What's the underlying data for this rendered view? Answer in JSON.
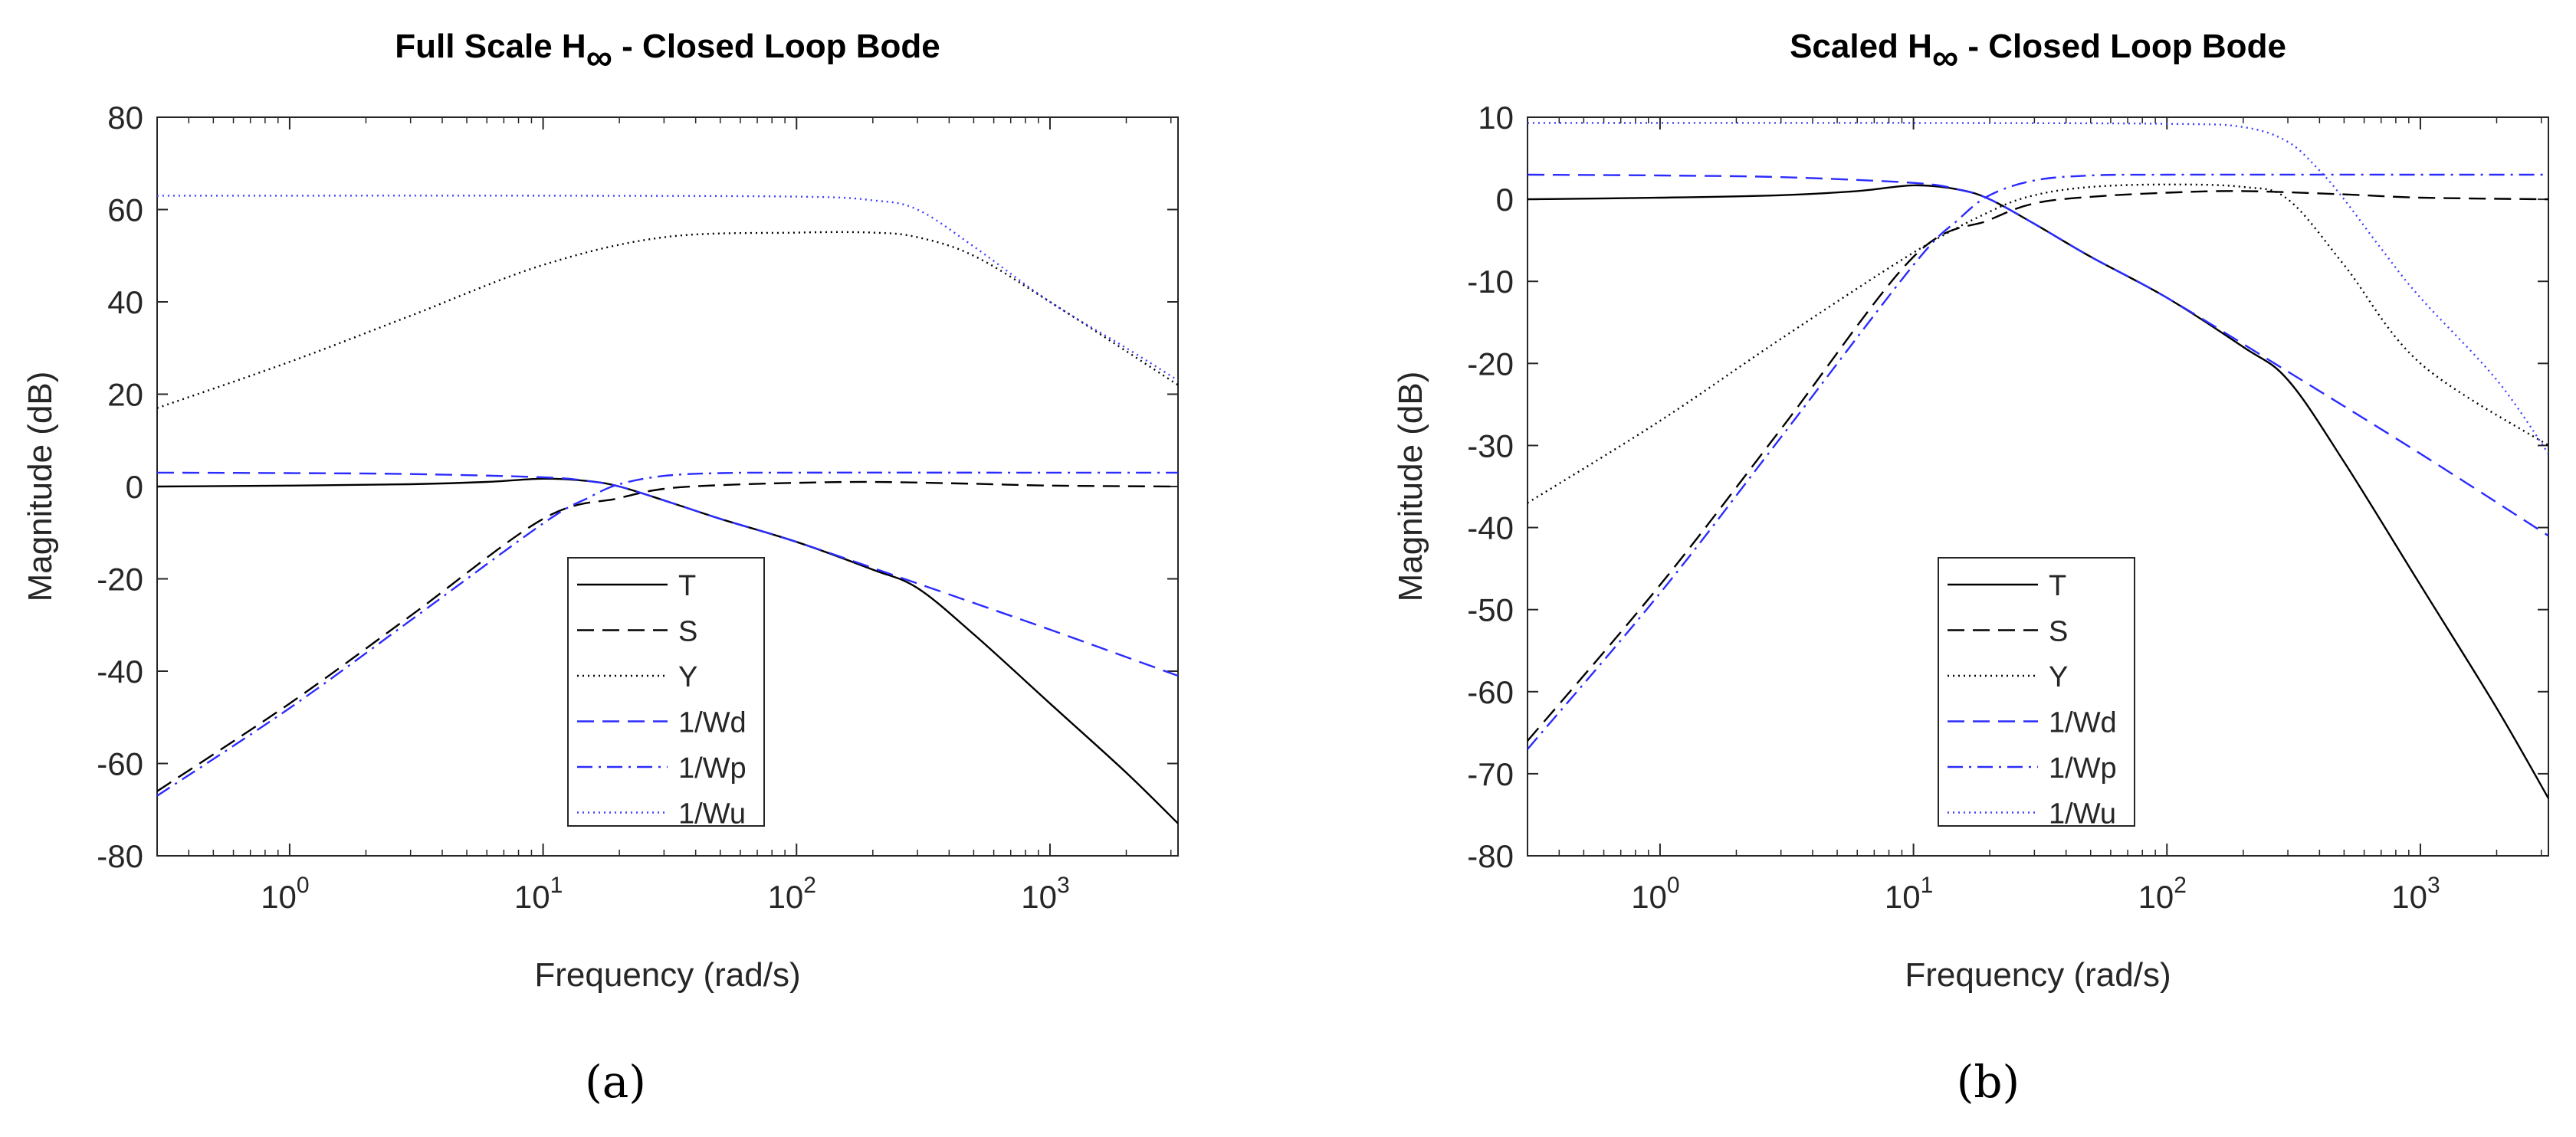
{
  "figure": {
    "captions": [
      "(a)",
      "(b)"
    ]
  },
  "chart_data": [
    {
      "type": "line",
      "title_main": "Full Scale H",
      "title_sub": "∞",
      "title_rest": " - Closed Loop Bode",
      "xlabel": "Frequency (rad/s)",
      "ylabel": "Magnitude (dB)",
      "xscale": "log",
      "xlim": [
        0.3,
        3200
      ],
      "ylim": [
        -80,
        80
      ],
      "yticks": [
        -80,
        -60,
        -40,
        -20,
        0,
        20,
        40,
        60,
        80
      ],
      "ytick_labels": [
        "-80",
        "-60",
        "-40",
        "-20",
        "0",
        "20",
        "40",
        "60",
        "80"
      ],
      "xticks": [
        1,
        10,
        100,
        1000
      ],
      "xtick_bases": [
        "10",
        "10",
        "10",
        "10"
      ],
      "xtick_exps": [
        "0",
        "1",
        "2",
        "3"
      ],
      "grid": false,
      "legend_position": "lower-center",
      "series": [
        {
          "name": "T",
          "color": "#000000",
          "dash": "solid",
          "x": [
            0.3,
            1,
            3,
            6,
            10,
            15,
            20,
            30,
            50,
            100,
            200,
            300,
            500,
            1000,
            2000,
            3200
          ],
          "y": [
            0,
            0.2,
            0.5,
            1,
            1.7,
            1.2,
            0,
            -3,
            -7,
            -12,
            -18,
            -22,
            -32,
            -47,
            -62,
            -73
          ]
        },
        {
          "name": "S",
          "color": "#000000",
          "dash": "long-dash",
          "x": [
            0.3,
            1,
            3,
            10,
            20,
            30,
            50,
            100,
            200,
            500,
            1000,
            3200
          ],
          "y": [
            -66,
            -47,
            -28,
            -7,
            -2.5,
            -0.5,
            0.3,
            0.8,
            1,
            0.6,
            0.2,
            0
          ]
        },
        {
          "name": "Y",
          "color": "#000000",
          "dash": "dotted",
          "x": [
            0.3,
            1,
            3,
            10,
            30,
            100,
            200,
            300,
            500,
            1000,
            3200
          ],
          "y": [
            17,
            27,
            37,
            48,
            54,
            55,
            55,
            54,
            50,
            40,
            22
          ]
        },
        {
          "name": "1/Wd",
          "color": "#2b2bff",
          "dash": "long-dash",
          "x": [
            0.3,
            1,
            3,
            10,
            15,
            20,
            30,
            50,
            100,
            300,
            1000,
            3200
          ],
          "y": [
            3,
            2.9,
            2.7,
            2,
            1.2,
            0,
            -3,
            -7,
            -12,
            -21,
            -31,
            -41
          ]
        },
        {
          "name": "1/Wp",
          "color": "#2b2bff",
          "dash": "dash-dot",
          "x": [
            0.3,
            1,
            3,
            10,
            15,
            20,
            30,
            50,
            100,
            1000,
            3200
          ],
          "y": [
            -67,
            -48,
            -29,
            -8,
            -2.5,
            0.5,
            2.3,
            2.9,
            3,
            3,
            3
          ]
        },
        {
          "name": "1/Wu",
          "color": "#4040ff",
          "dash": "dotted",
          "x": [
            0.3,
            1,
            10,
            100,
            200,
            300,
            500,
            1000,
            2000,
            3200
          ],
          "y": [
            63,
            63,
            63,
            62.8,
            62,
            60,
            52,
            40,
            30,
            23
          ]
        }
      ]
    },
    {
      "type": "line",
      "title_main": "Scaled H",
      "title_sub": "∞",
      "title_rest": " - Closed Loop Bode",
      "xlabel": "Frequency (rad/s)",
      "ylabel": "Magnitude (dB)",
      "xscale": "log",
      "xlim": [
        0.3,
        3200
      ],
      "ylim": [
        -80,
        10
      ],
      "yticks": [
        -80,
        -70,
        -60,
        -50,
        -40,
        -30,
        -20,
        -10,
        0,
        10
      ],
      "ytick_labels": [
        "-80",
        "-70",
        "-60",
        "-50",
        "-40",
        "-30",
        "-20",
        "-10",
        "0",
        "10"
      ],
      "xticks": [
        1,
        10,
        100,
        1000
      ],
      "xtick_bases": [
        "10",
        "10",
        "10",
        "10"
      ],
      "xtick_exps": [
        "0",
        "1",
        "2",
        "3"
      ],
      "grid": false,
      "legend_position": "lower-center",
      "series": [
        {
          "name": "T",
          "color": "#000000",
          "dash": "solid",
          "x": [
            0.3,
            1,
            3,
            6,
            10,
            15,
            20,
            30,
            50,
            100,
            200,
            300,
            500,
            1000,
            2000,
            3200
          ],
          "y": [
            0,
            0.2,
            0.5,
            1,
            1.7,
            1.2,
            0,
            -3,
            -7,
            -12,
            -18,
            -22,
            -32,
            -47,
            -62,
            -73
          ]
        },
        {
          "name": "S",
          "color": "#000000",
          "dash": "long-dash",
          "x": [
            0.3,
            1,
            3,
            10,
            20,
            30,
            50,
            100,
            200,
            500,
            1000,
            3200
          ],
          "y": [
            -66,
            -47,
            -28,
            -7,
            -2.5,
            -0.5,
            0.3,
            0.8,
            1,
            0.6,
            0.2,
            0
          ]
        },
        {
          "name": "Y",
          "color": "#000000",
          "dash": "dotted",
          "x": [
            0.3,
            1,
            3,
            10,
            20,
            30,
            50,
            100,
            200,
            300,
            500,
            1000,
            3200
          ],
          "y": [
            -37,
            -27,
            -17,
            -6.5,
            -1.5,
            0.5,
            1.5,
            1.8,
            1.5,
            0,
            -8,
            -20,
            -30
          ]
        },
        {
          "name": "1/Wd",
          "color": "#2b2bff",
          "dash": "long-dash",
          "x": [
            0.3,
            1,
            3,
            10,
            15,
            20,
            30,
            50,
            100,
            300,
            1000,
            3200
          ],
          "y": [
            3,
            2.9,
            2.7,
            2,
            1.2,
            0,
            -3,
            -7,
            -12,
            -21,
            -31,
            -41
          ]
        },
        {
          "name": "1/Wp",
          "color": "#2b2bff",
          "dash": "dash-dot",
          "x": [
            0.3,
            1,
            3,
            10,
            15,
            20,
            30,
            50,
            100,
            1000,
            3200
          ],
          "y": [
            -67,
            -48,
            -29,
            -8,
            -2.5,
            0.5,
            2.3,
            2.9,
            3,
            3,
            3
          ]
        },
        {
          "name": "1/Wu",
          "color": "#4040ff",
          "dash": "dotted",
          "x": [
            0.3,
            1,
            10,
            100,
            200,
            300,
            400,
            500,
            700,
            1000,
            2000,
            3200
          ],
          "y": [
            9.3,
            9.3,
            9.3,
            9.2,
            8.8,
            7,
            3.5,
            0,
            -6,
            -12,
            -22,
            -31
          ]
        }
      ]
    }
  ]
}
